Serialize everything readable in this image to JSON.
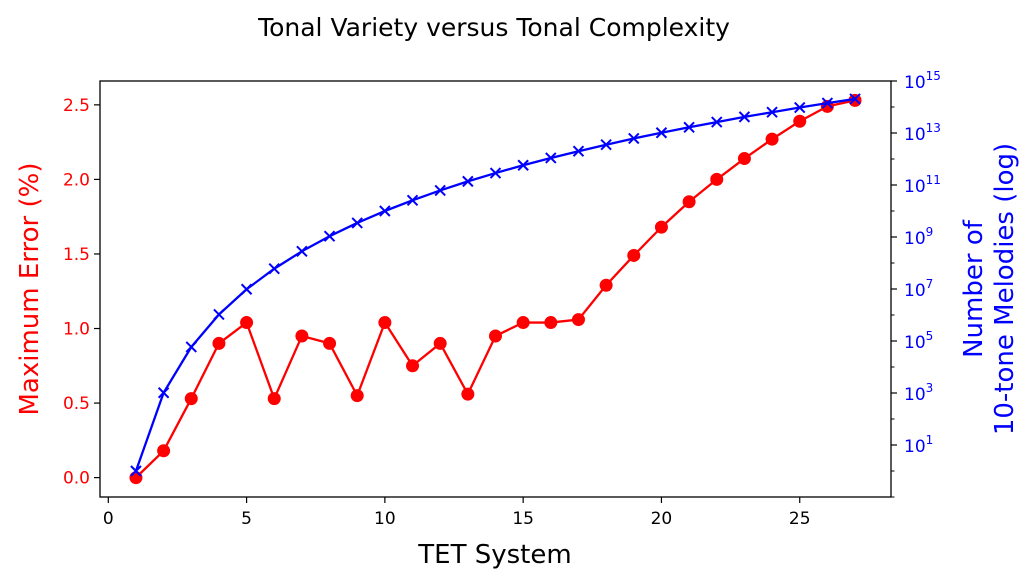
{
  "chart_data": {
    "type": "line",
    "title": "Tonal Variety versus Tonal Complexity",
    "xlabel": "TET System",
    "ylabel_left": "Maximum Error (%)",
    "ylabel_right_line1": "Number of",
    "ylabel_right_line2": "10-tone Melodies (log)",
    "xlim": [
      -0.3,
      28.3
    ],
    "ylim_left": [
      -0.13,
      2.66
    ],
    "ylim_right_log10": [
      -1.0,
      15.0
    ],
    "x_ticks": [
      0,
      5,
      10,
      15,
      20,
      25
    ],
    "y_ticks_left": [
      0.0,
      0.5,
      1.0,
      1.5,
      2.0,
      2.5
    ],
    "y_ticks_left_labels": [
      "0.0",
      "0.5",
      "1.0",
      "1.5",
      "2.0",
      "2.5"
    ],
    "y_ticks_right_exponents": [
      1,
      3,
      5,
      7,
      9,
      11,
      13,
      15
    ],
    "y_ticks_right_base": "10",
    "grid": false,
    "colors": {
      "left_axis": "#ff0000",
      "right_axis": "#0000ff",
      "text": "#000000"
    },
    "series": [
      {
        "name": "Maximum Error (%)",
        "axis": "left",
        "color": "#ff0000",
        "marker": "circle",
        "x": [
          1,
          2,
          3,
          4,
          5,
          6,
          7,
          8,
          9,
          10,
          11,
          12,
          13,
          14,
          15,
          16,
          17,
          18,
          19,
          20,
          21,
          22,
          23,
          24,
          25,
          26,
          27
        ],
        "values": [
          0.0,
          0.18,
          0.53,
          0.9,
          1.04,
          0.53,
          0.95,
          0.9,
          0.55,
          1.04,
          0.75,
          0.9,
          0.56,
          0.95,
          1.04,
          1.04,
          1.06,
          1.29,
          1.49,
          1.68,
          1.85,
          2.0,
          2.14,
          2.27,
          2.39,
          2.49,
          2.53
        ]
      },
      {
        "name": "Number of 10-tone Melodies (log)",
        "axis": "right",
        "color": "#0000ff",
        "marker": "x",
        "x": [
          1,
          2,
          3,
          4,
          5,
          6,
          7,
          8,
          9,
          10,
          11,
          12,
          13,
          14,
          15,
          16,
          17,
          18,
          19,
          20,
          21,
          22,
          23,
          24,
          25,
          26,
          27
        ],
        "values_log10": [
          0.0,
          3.01,
          4.77,
          6.02,
          6.99,
          7.78,
          8.45,
          9.03,
          9.54,
          10.0,
          10.41,
          10.79,
          11.14,
          11.46,
          11.76,
          12.04,
          12.3,
          12.55,
          12.79,
          13.01,
          13.22,
          13.42,
          13.62,
          13.8,
          13.98,
          14.15,
          14.31
        ]
      }
    ]
  }
}
